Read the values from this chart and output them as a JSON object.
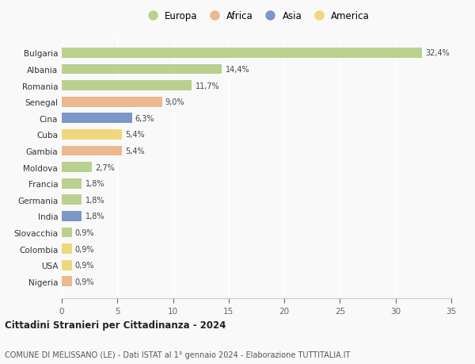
{
  "countries": [
    "Bulgaria",
    "Albania",
    "Romania",
    "Senegal",
    "Cina",
    "Cuba",
    "Gambia",
    "Moldova",
    "Francia",
    "Germania",
    "India",
    "Slovacchia",
    "Colombia",
    "USA",
    "Nigeria"
  ],
  "values": [
    32.4,
    14.4,
    11.7,
    9.0,
    6.3,
    5.4,
    5.4,
    2.7,
    1.8,
    1.8,
    1.8,
    0.9,
    0.9,
    0.9,
    0.9
  ],
  "labels": [
    "32,4%",
    "14,4%",
    "11,7%",
    "9,0%",
    "6,3%",
    "5,4%",
    "5,4%",
    "2,7%",
    "1,8%",
    "1,8%",
    "1,8%",
    "0,9%",
    "0,9%",
    "0,9%",
    "0,9%"
  ],
  "continents": [
    "Europa",
    "Europa",
    "Europa",
    "Africa",
    "Asia",
    "America",
    "Africa",
    "Europa",
    "Europa",
    "Europa",
    "Asia",
    "Europa",
    "America",
    "America",
    "Africa"
  ],
  "colors": {
    "Europa": "#adc878",
    "Africa": "#e8aa78",
    "Asia": "#6080c0",
    "America": "#f0d060"
  },
  "xlim": [
    0,
    35
  ],
  "xticks": [
    0,
    5,
    10,
    15,
    20,
    25,
    30,
    35
  ],
  "title": "Cittadini Stranieri per Cittadinanza - 2024",
  "subtitle": "COMUNE DI MELISSANO (LE) - Dati ISTAT al 1° gennaio 2024 - Elaborazione TUTTITALIA.IT",
  "bg_color": "#f9f9f9",
  "bar_alpha": 0.82,
  "legend_order": [
    "Europa",
    "Africa",
    "Asia",
    "America"
  ]
}
